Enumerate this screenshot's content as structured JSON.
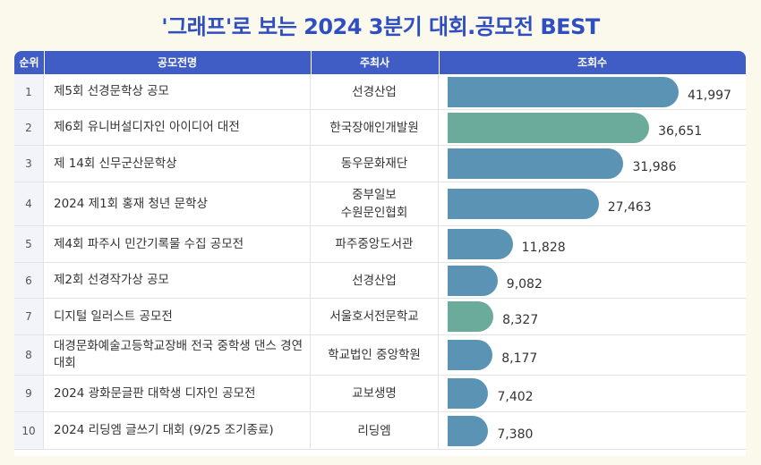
{
  "title": "'그래프'로 보는 2024 3분기 대회.공모전 BEST",
  "headers": {
    "rank": "순위",
    "name": "공모전명",
    "host": "주최사",
    "views": "조회수"
  },
  "colors": {
    "bar_default": "#5b93b4",
    "bar_highlight": "#6aab9c",
    "header": "#3f5dc4",
    "title": "#2f4fc0"
  },
  "chart_data": {
    "type": "bar",
    "orientation": "horizontal",
    "title": "'그래프'로 보는 2024 3분기 대회.공모전 BEST",
    "xlabel": "",
    "ylabel": "",
    "categories": [
      "제5회 선경문학상 공모",
      "제6회 유니버설디자인 아이디어 대전",
      "제 14회 신무군산문학상",
      "2024 제1회 홍재 청년 문학상",
      "제4회 파주시 민간기록물 수집 공모전",
      "제2회 선경작가상 공모",
      "디지털 일러스트 공모전",
      "대경문화예술고등학교장배 전국 중학생 댄스 경연대회",
      "2024 광화문글판 대학생 디자인 공모전",
      "2024 리딩엠 글쓰기 대회 (9/25 조기종료)"
    ],
    "values": [
      41997,
      36651,
      31986,
      27463,
      11828,
      9082,
      8327,
      8177,
      7402,
      7380
    ],
    "xlim": [
      0,
      42000
    ],
    "highlighted": [
      1,
      6
    ]
  },
  "rows": [
    {
      "rank": "1",
      "name": "제5회 선경문학상 공모",
      "host": "선경산업",
      "views": "41,997"
    },
    {
      "rank": "2",
      "name": "제6회 유니버설디자인 아이디어 대전",
      "host": "한국장애인개발원",
      "views": "36,651"
    },
    {
      "rank": "3",
      "name": "제 14회 신무군산문학상",
      "host": "동우문화재단",
      "views": "31,986"
    },
    {
      "rank": "4",
      "name": "2024 제1회 홍재 청년 문학상",
      "host": "중부일보\n수원문인협회",
      "views": "27,463"
    },
    {
      "rank": "5",
      "name": "제4회 파주시 민간기록물 수집 공모전",
      "host": "파주중앙도서관",
      "views": "11,828"
    },
    {
      "rank": "6",
      "name": "제2회 선경작가상 공모",
      "host": "선경산업",
      "views": "9,082"
    },
    {
      "rank": "7",
      "name": "디지털 일러스트 공모전",
      "host": "서울호서전문학교",
      "views": "8,327"
    },
    {
      "rank": "8",
      "name": "대경문화예술고등학교장배 전국 중학생 댄스 경연대회",
      "host": "학교법인 중앙학원",
      "views": "8,177"
    },
    {
      "rank": "9",
      "name": "2024 광화문글판 대학생 디자인 공모전",
      "host": "교보생명",
      "views": "7,402"
    },
    {
      "rank": "10",
      "name": "2024 리딩엠 글쓰기 대회 (9/25 조기종료)",
      "host": "리딩엠",
      "views": "7,380"
    }
  ]
}
